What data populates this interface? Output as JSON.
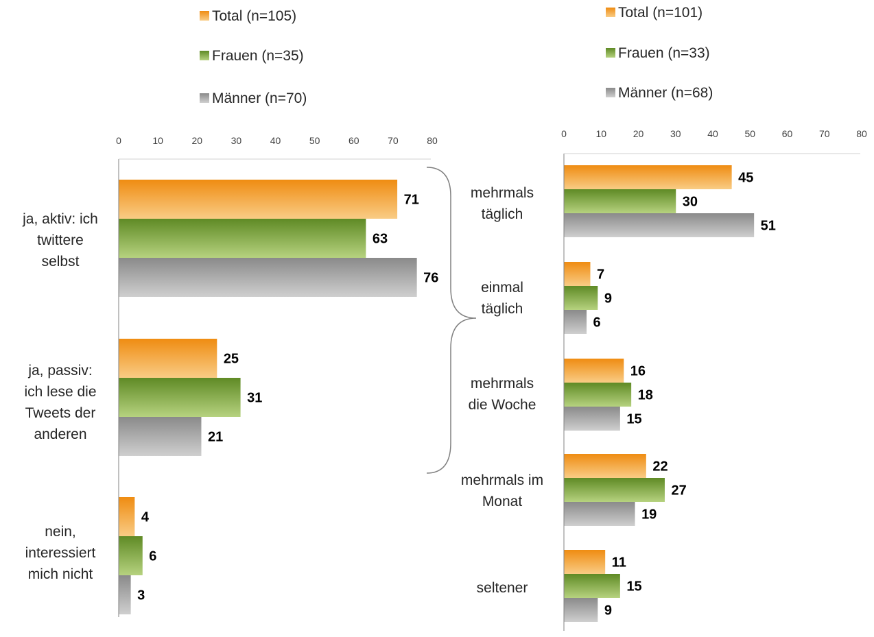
{
  "colors": {
    "total": "#f29a2e",
    "frauen": "#82a642",
    "maenner": "#a6a6a6",
    "axis": "#808080"
  },
  "chart_data": [
    {
      "type": "bar",
      "orientation": "horizontal",
      "categories": [
        [
          "ja, aktiv: ich",
          "twittere",
          "selbst"
        ],
        [
          "ja, passiv:",
          "ich lese die",
          "Tweets der",
          "anderen"
        ],
        [
          "nein,",
          "interessiert",
          "mich nicht"
        ]
      ],
      "series": [
        {
          "name": "Total (n=105)",
          "color_key": "total",
          "values": [
            71,
            25,
            4
          ]
        },
        {
          "name": "Frauen (n=35)",
          "color_key": "frauen",
          "values": [
            63,
            31,
            6
          ]
        },
        {
          "name": "Männer (n=70)",
          "color_key": "maenner",
          "values": [
            76,
            21,
            3
          ]
        }
      ],
      "xlim": [
        0,
        80
      ],
      "ticks": [
        "0",
        "10",
        "20",
        "30",
        "40",
        "50",
        "60",
        "70",
        "80"
      ],
      "axis_position": "top",
      "legend": "top",
      "grid": false
    },
    {
      "type": "bar",
      "orientation": "horizontal",
      "categories": [
        [
          "mehrmals",
          "täglich"
        ],
        [
          "einmal",
          "täglich"
        ],
        [
          "mehrmals",
          "die Woche"
        ],
        [
          "mehrmals im",
          "Monat"
        ],
        [
          "seltener"
        ]
      ],
      "series": [
        {
          "name": "Total (n=101)",
          "color_key": "total",
          "values": [
            45,
            7,
            16,
            22,
            11
          ]
        },
        {
          "name": "Frauen (n=33)",
          "color_key": "frauen",
          "values": [
            30,
            9,
            18,
            27,
            15
          ]
        },
        {
          "name": "Männer (n=68)",
          "color_key": "maenner",
          "values": [
            51,
            6,
            15,
            19,
            9
          ]
        }
      ],
      "xlim": [
        0,
        80
      ],
      "ticks": [
        "0",
        "10",
        "20",
        "30",
        "40",
        "50",
        "60",
        "70",
        "80"
      ],
      "axis_position": "top",
      "legend": "top",
      "grid": false
    }
  ]
}
